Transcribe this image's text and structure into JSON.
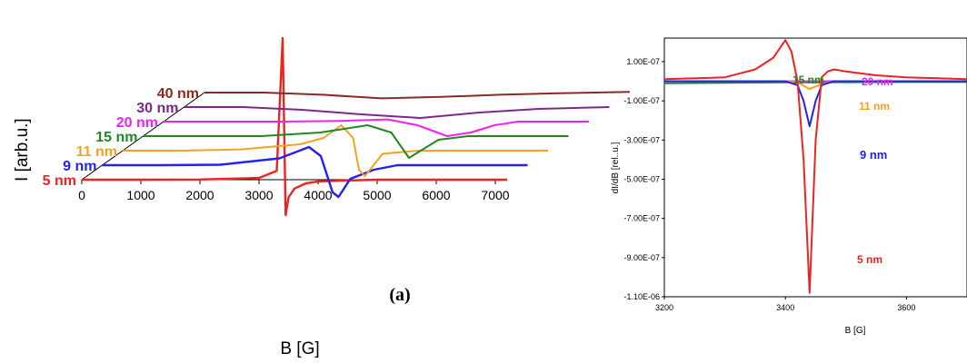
{
  "chart_data": [
    {
      "type": "line",
      "title": "",
      "panel_label": "(a)",
      "xlabel": "B [G]",
      "ylabel": "I [arb.u.]",
      "xlim": [
        0,
        7000
      ],
      "x_ticks": [
        "0",
        "1000",
        "2000",
        "3000",
        "4000",
        "5000",
        "6000",
        "7000"
      ],
      "grid": false,
      "legend": "none",
      "series": [
        {
          "name": "5 nm",
          "color": "#ee2222",
          "x": [
            0,
            1000,
            2000,
            3000,
            3300,
            3400,
            3450,
            3500,
            3600,
            3800,
            4000,
            5000,
            6000,
            7200
          ],
          "y": [
            0,
            0,
            0.1,
            1,
            5,
            80,
            -20,
            -10,
            -5,
            -2,
            -1,
            0,
            0,
            0
          ]
        },
        {
          "name": "9 nm",
          "color": "#2222ee",
          "x": [
            0,
            1000,
            2000,
            3000,
            3500,
            3700,
            3900,
            4000,
            4200,
            4600,
            5000,
            6000,
            7200
          ],
          "y": [
            0,
            0,
            0.1,
            1.5,
            4,
            2,
            -6,
            -7,
            -3,
            -1,
            0,
            0,
            0
          ]
        },
        {
          "name": "11 nm",
          "color": "#f5a020",
          "x": [
            0,
            1000,
            2000,
            3000,
            3400,
            3700,
            3900,
            4000,
            4100,
            4400,
            5000,
            6000,
            7200
          ],
          "y": [
            0,
            0,
            0.2,
            1,
            2,
            4,
            2,
            -3,
            -4,
            -0.5,
            0,
            0,
            0
          ]
        },
        {
          "name": "15 nm",
          "color": "#228822",
          "x": [
            0,
            1000,
            2000,
            3000,
            3800,
            4200,
            4500,
            4700,
            5000,
            5500,
            6000,
            7200
          ],
          "y": [
            0,
            0,
            0,
            0.5,
            1.5,
            0.5,
            -3,
            -2,
            -0.5,
            0,
            0,
            0
          ]
        },
        {
          "name": "20 nm",
          "color": "#ee22ee",
          "x": [
            0,
            1000,
            2000,
            3000,
            3800,
            4300,
            4800,
            5200,
            5600,
            6000,
            7200
          ],
          "y": [
            0,
            0,
            0,
            0.1,
            0.3,
            -0.5,
            -2,
            -1.5,
            -0.5,
            0,
            0
          ]
        },
        {
          "name": "30 nm",
          "color": "#7a2a86",
          "x": [
            0,
            1000,
            2000,
            3000,
            4000,
            5000,
            6000,
            7200
          ],
          "y": [
            0,
            0,
            -0.3,
            -0.8,
            -1.2,
            -0.6,
            -0.2,
            0
          ]
        },
        {
          "name": "40 nm",
          "color": "#8b2a22",
          "x": [
            0,
            1000,
            2000,
            3000,
            4000,
            5000,
            6000,
            7200
          ],
          "y": [
            0,
            0,
            -0.3,
            -0.8,
            -0.6,
            -0.3,
            -0.1,
            0.1
          ]
        }
      ]
    },
    {
      "type": "line",
      "title": "",
      "xlabel": "B [G]",
      "ylabel": "dI/dB [rel..u.]",
      "xlim": [
        3200,
        3700
      ],
      "x_ticks": [
        "3200",
        "3400",
        "3600"
      ],
      "ylim": [
        -1.1e-06,
        2.2e-07
      ],
      "y_ticks": [
        "1.00E-07",
        "-1.00E-07",
        "-3.00E-07",
        "-5.00E-07",
        "-7.00E-07",
        "-9.00E-07",
        "-1.10E-06"
      ],
      "grid": false,
      "legend": "none",
      "series": [
        {
          "name": "5 nm",
          "color": "#ee2222",
          "x": [
            3200,
            3300,
            3350,
            3380,
            3400,
            3410,
            3420,
            3430,
            3440,
            3450,
            3460,
            3470,
            3480,
            3500,
            3550,
            3600,
            3700
          ],
          "y": [
            1e-08,
            2e-08,
            6e-08,
            1.2e-07,
            2.1e-07,
            1.5e-07,
            0,
            -4e-07,
            -1.08e-06,
            -3e-07,
            2e-08,
            5e-08,
            6e-08,
            5e-08,
            3e-08,
            2e-08,
            1e-08
          ]
        },
        {
          "name": "9 nm",
          "color": "#2222ee",
          "x": [
            3200,
            3400,
            3420,
            3430,
            3440,
            3450,
            3460,
            3480,
            3500,
            3700
          ],
          "y": [
            0,
            0,
            -2e-08,
            -1e-07,
            -2.3e-07,
            -1e-07,
            -2e-08,
            0,
            0,
            0
          ]
        },
        {
          "name": "11 nm",
          "color": "#f5a020",
          "x": [
            3200,
            3400,
            3420,
            3440,
            3460,
            3480,
            3500,
            3700
          ],
          "y": [
            0,
            0,
            -5e-09,
            -4e-08,
            -1.5e-08,
            0,
            0,
            0
          ]
        },
        {
          "name": "15 nm",
          "color": "#228822",
          "x": [
            3200,
            3300,
            3400,
            3500,
            3600,
            3700
          ],
          "y": [
            -1e-08,
            -8e-09,
            -6e-09,
            -5e-09,
            -4e-09,
            -4e-09
          ]
        },
        {
          "name": "20 nm",
          "color": "#ee22ee",
          "x": [
            3200,
            3300,
            3400,
            3500,
            3600,
            3700
          ],
          "y": [
            0,
            0,
            0,
            0,
            0,
            0
          ]
        }
      ]
    }
  ]
}
